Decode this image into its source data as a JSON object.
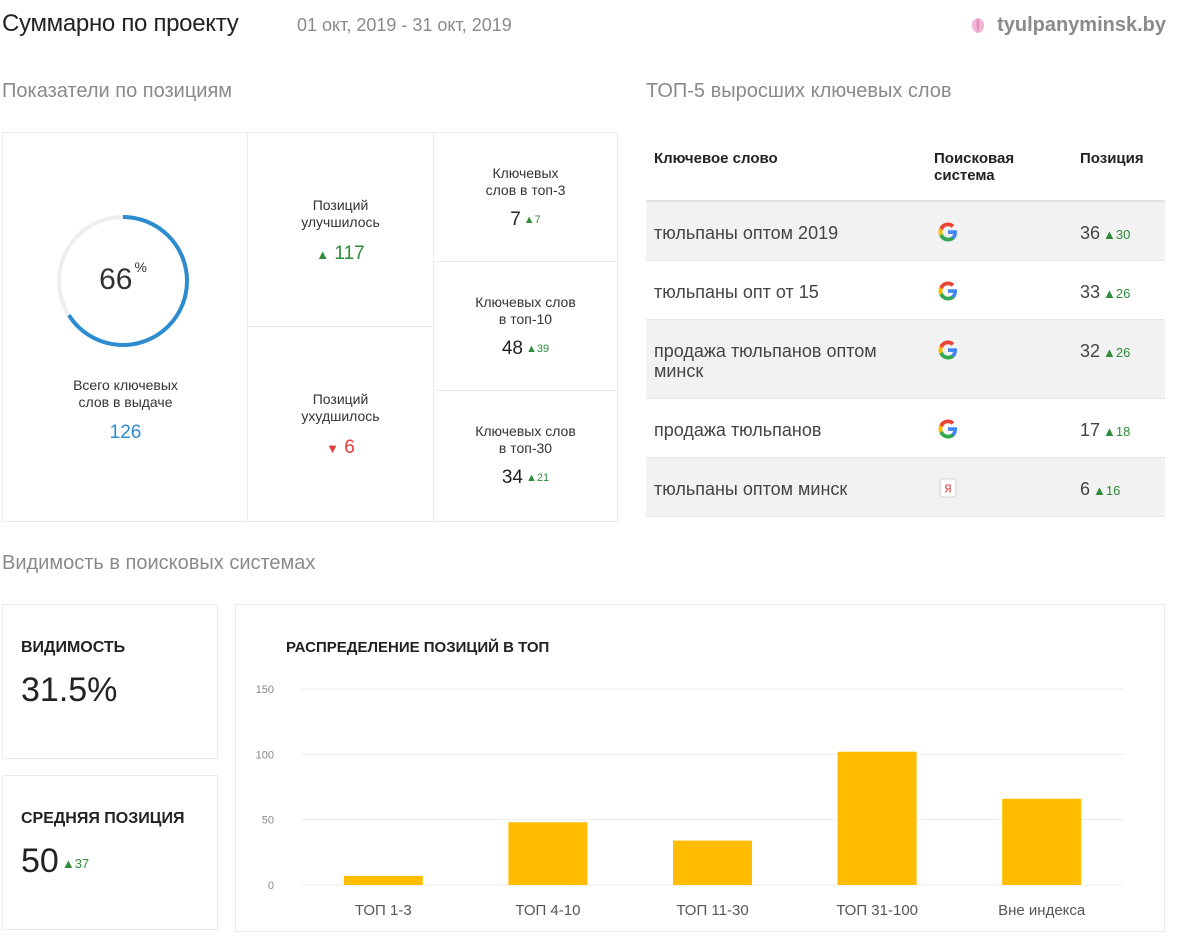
{
  "header": {
    "title": "Суммарно по проекту",
    "period": "01 окт, 2019 - 31 окт, 2019",
    "site": "tyulpanyminsk.by",
    "site_icon": "tulip-logo-icon"
  },
  "positions": {
    "section_title": "Показатели по позициям",
    "total": {
      "percent": "66",
      "percent_sign": "%",
      "percent_fraction": 0.66,
      "label": "Всего ключевых слов в выдаче",
      "value": "126"
    },
    "improved": {
      "label": "Позиций улучшилось",
      "value": "117"
    },
    "worsened": {
      "label": "Позиций ухудшилось",
      "value": "6"
    },
    "top3": {
      "label": "Ключевых слов в топ-3",
      "value": "7",
      "delta": "7"
    },
    "top10": {
      "label": "Ключевых слов в топ-10",
      "value": "48",
      "delta": "39"
    },
    "top30": {
      "label": "Ключевых слов в топ-30",
      "value": "34",
      "delta": "21"
    }
  },
  "top5": {
    "section_title": "ТОП-5 выросших ключевых слов",
    "columns": {
      "keyword": "Ключевое слово",
      "engine": "Поисковая система",
      "position": "Позиция"
    },
    "rows": [
      {
        "keyword": "тюльпаны оптом 2019",
        "engine": "google",
        "position": "36",
        "delta": "30"
      },
      {
        "keyword": "тюльпаны опт от 15",
        "engine": "google",
        "position": "33",
        "delta": "26"
      },
      {
        "keyword": "продажа тюльпанов оптом минск",
        "engine": "google",
        "position": "32",
        "delta": "26"
      },
      {
        "keyword": "продажа тюльпанов",
        "engine": "google",
        "position": "17",
        "delta": "18"
      },
      {
        "keyword": "тюльпаны оптом минск",
        "engine": "yandex",
        "position": "6",
        "delta": "16"
      }
    ]
  },
  "visibility": {
    "section_title": "Видимость в поисковых системах",
    "visibility_card": {
      "label": "ВИДИМОСТЬ",
      "value": "31.5%"
    },
    "avg_card": {
      "label": "СРЕДНЯЯ ПОЗИЦИЯ",
      "value": "50",
      "delta": "37"
    }
  },
  "colors": {
    "accent_blue": "#2d8bd0",
    "up_green": "#2e8b3a",
    "down_red": "#e23b3b",
    "bar_yellow": "#ffbc00"
  },
  "chart_data": {
    "type": "bar",
    "title": "РАСПРЕДЕЛЕНИЕ ПОЗИЦИЙ В ТОП",
    "categories": [
      "ТОП 1-3",
      "ТОП 4-10",
      "ТОП 11-30",
      "ТОП 31-100",
      "Вне индекса"
    ],
    "values": [
      7,
      48,
      34,
      102,
      66
    ],
    "yticks": [
      "0",
      "50",
      "100",
      "150"
    ],
    "ylim": [
      0,
      150
    ],
    "grid": true,
    "xlabel": "",
    "ylabel": ""
  }
}
